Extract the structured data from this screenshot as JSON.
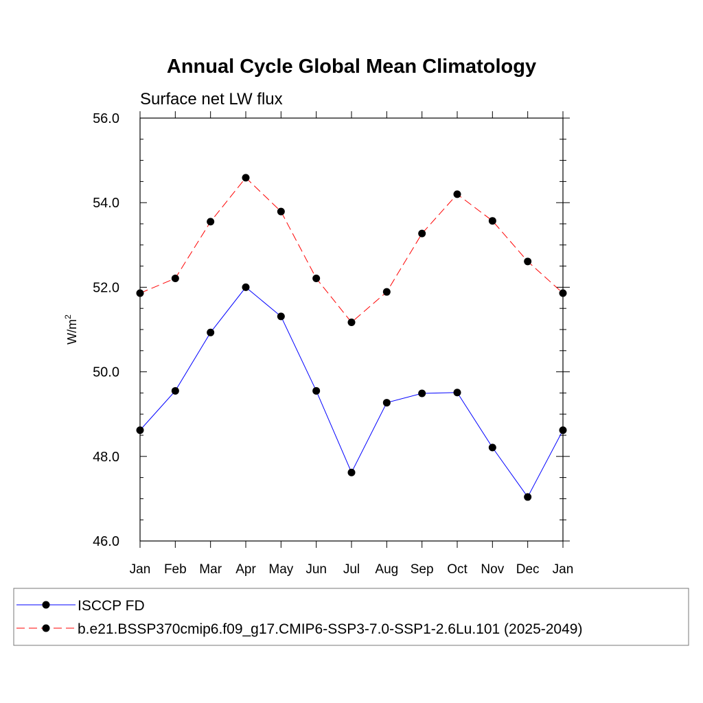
{
  "chart_data": {
    "type": "line",
    "title": "Annual Cycle Global Mean Climatology",
    "subtitle": "Surface net LW flux",
    "xlabel": "",
    "ylabel": "W/m",
    "ylabel_superscript": "2",
    "categories": [
      "Jan",
      "Feb",
      "Mar",
      "Apr",
      "May",
      "Jun",
      "Jul",
      "Aug",
      "Sep",
      "Oct",
      "Nov",
      "Dec",
      "Jan"
    ],
    "ylim": [
      46.0,
      56.0
    ],
    "yticks": [
      "46.0",
      "48.0",
      "50.0",
      "52.0",
      "54.0",
      "56.0"
    ],
    "grid": false,
    "legend_position": "bottom",
    "series": [
      {
        "name": "ISCCP FD",
        "color": "#0000ff",
        "line_style": "solid",
        "marker": "filled-circle",
        "values": [
          48.62,
          49.55,
          50.93,
          52.0,
          51.31,
          49.55,
          47.62,
          49.27,
          49.49,
          49.51,
          48.21,
          47.04,
          48.62
        ]
      },
      {
        "name": "b.e21.BSSP370cmip6.f09_g17.CMIP6-SSP3-7.0-SSP1-2.6Lu.101 (2025-2049)",
        "color": "#ff0000",
        "line_style": "dashed",
        "marker": "filled-circle",
        "values": [
          51.86,
          52.21,
          53.55,
          54.59,
          53.79,
          52.21,
          51.17,
          51.89,
          53.27,
          54.2,
          53.57,
          52.61,
          51.86
        ]
      }
    ]
  }
}
